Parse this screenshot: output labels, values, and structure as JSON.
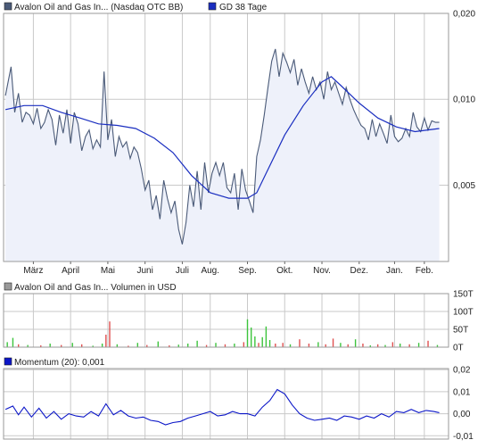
{
  "colors": {
    "price": "#4a5a78",
    "price_fill": "#eef1fa",
    "ma": "#1a2ec0",
    "momentum": "#0b16c8",
    "vol_up": "#3cc43c",
    "vol_down": "#e05050",
    "grid": "#c9c9c9",
    "frame": "#9a9a9a"
  },
  "icons": {
    "legend": "square-swatch-icon"
  },
  "chart_data": [
    {
      "type": "line",
      "legend": [
        {
          "label": "Avalon Oil and Gas In... (Nasdaq OTC BB)",
          "color": "#4a5a78"
        },
        {
          "label": "GD 38 Tage",
          "color": "#1a2ec0"
        }
      ],
      "x_tick_labels": [
        "März",
        "April",
        "Mai",
        "Juni",
        "Juli",
        "Aug.",
        "Sep.",
        "Okt.",
        "Nov.",
        "Dez.",
        "Jan.",
        "Feb."
      ],
      "x_tick_pos": [
        0.5,
        2.5,
        4.5,
        6.5,
        8.5,
        10.0,
        12.0,
        14.0,
        16.0,
        18.0,
        19.9,
        21.5
      ],
      "y_ticks": [
        0.005,
        0.01,
        0.02
      ],
      "y_tick_labels": [
        "0,005",
        "0,010",
        "0,020"
      ],
      "yscale": "log",
      "ylim": [
        0.0027,
        0.02
      ],
      "xlim": [
        -1.1,
        22.8
      ],
      "grid": true,
      "series": [
        {
          "name": "Avalon Oil and Gas In... (Nasdaq OTC BB)",
          "x": [
            -1.0,
            -0.7,
            -0.5,
            -0.3,
            -0.1,
            0.1,
            0.3,
            0.5,
            0.7,
            0.9,
            1.1,
            1.3,
            1.5,
            1.7,
            1.9,
            2.1,
            2.3,
            2.5,
            2.7,
            2.9,
            3.1,
            3.3,
            3.5,
            3.7,
            3.9,
            4.1,
            4.3,
            4.5,
            4.7,
            4.9,
            5.1,
            5.3,
            5.5,
            5.7,
            5.9,
            6.1,
            6.3,
            6.5,
            6.7,
            6.9,
            7.1,
            7.3,
            7.5,
            7.7,
            7.9,
            8.1,
            8.3,
            8.5,
            8.7,
            8.9,
            9.1,
            9.3,
            9.5,
            9.7,
            9.9,
            10.1,
            10.3,
            10.5,
            10.7,
            10.9,
            11.1,
            11.3,
            11.5,
            11.7,
            11.9,
            12.1,
            12.3,
            12.5,
            12.7,
            12.9,
            13.1,
            13.3,
            13.5,
            13.7,
            13.9,
            14.1,
            14.3,
            14.5,
            14.7,
            14.9,
            15.1,
            15.3,
            15.5,
            15.7,
            15.9,
            16.1,
            16.3,
            16.5,
            16.7,
            16.9,
            17.1,
            17.3,
            17.5,
            17.7,
            17.9,
            18.1,
            18.3,
            18.5,
            18.7,
            18.9,
            19.1,
            19.3,
            19.5,
            19.7,
            19.9,
            20.1,
            20.3,
            20.5,
            20.7,
            20.9,
            21.1,
            21.3,
            21.5,
            21.7,
            21.9,
            22.1,
            22.3
          ],
          "values": [
            0.0103,
            0.013,
            0.009,
            0.0105,
            0.0083,
            0.009,
            0.0088,
            0.0082,
            0.0093,
            0.0079,
            0.0083,
            0.0092,
            0.0085,
            0.0069,
            0.0088,
            0.0076,
            0.0092,
            0.007,
            0.009,
            0.0082,
            0.0066,
            0.0074,
            0.0078,
            0.0067,
            0.0072,
            0.0068,
            0.0125,
            0.0072,
            0.0085,
            0.0063,
            0.0074,
            0.0068,
            0.0071,
            0.0062,
            0.0068,
            0.0065,
            0.0057,
            0.0048,
            0.0052,
            0.0041,
            0.0046,
            0.0038,
            0.0052,
            0.0045,
            0.004,
            0.0044,
            0.0035,
            0.0031,
            0.0037,
            0.005,
            0.0042,
            0.0056,
            0.0041,
            0.006,
            0.0047,
            0.0055,
            0.006,
            0.0054,
            0.006,
            0.0049,
            0.0047,
            0.0055,
            0.0041,
            0.0057,
            0.0048,
            0.0044,
            0.004,
            0.0063,
            0.0072,
            0.0088,
            0.011,
            0.0136,
            0.015,
            0.012,
            0.0145,
            0.0135,
            0.0124,
            0.0138,
            0.0112,
            0.0128,
            0.0115,
            0.0105,
            0.012,
            0.0108,
            0.0115,
            0.01,
            0.0125,
            0.0108,
            0.0115,
            0.0105,
            0.0096,
            0.011,
            0.01,
            0.0092,
            0.0086,
            0.0081,
            0.0079,
            0.0072,
            0.0085,
            0.0074,
            0.0082,
            0.0076,
            0.007,
            0.0088,
            0.0074,
            0.0071,
            0.0073,
            0.0079,
            0.0074,
            0.009,
            0.008,
            0.0077,
            0.0086,
            0.0078,
            0.0084,
            0.0083,
            0.0083
          ]
        },
        {
          "name": "GD 38 Tage",
          "x": [
            -1.0,
            0.0,
            1.0,
            2.0,
            3.0,
            4.0,
            5.0,
            6.0,
            7.0,
            8.0,
            9.0,
            10.0,
            11.0,
            12.0,
            12.5,
            13.0,
            14.0,
            15.0,
            16.0,
            16.5,
            17.0,
            18.0,
            19.0,
            20.0,
            21.0,
            22.3
          ],
          "values": [
            0.0092,
            0.0095,
            0.0095,
            0.009,
            0.0086,
            0.0082,
            0.0081,
            0.0079,
            0.0073,
            0.0065,
            0.0054,
            0.0047,
            0.0045,
            0.0045,
            0.0047,
            0.0055,
            0.0075,
            0.0095,
            0.0115,
            0.012,
            0.0112,
            0.0097,
            0.0086,
            0.008,
            0.0077,
            0.0079
          ]
        }
      ]
    },
    {
      "type": "bar",
      "legend": [
        {
          "label": "Avalon Oil and Gas In... Volumen in USD",
          "color": "#9a9a9a"
        }
      ],
      "y_ticks": [
        0,
        50,
        100,
        150
      ],
      "y_tick_labels": [
        "0T",
        "50T",
        "100T",
        "150T"
      ],
      "ylim": [
        0,
        150
      ],
      "grid": true,
      "x": [
        -0.9,
        -0.6,
        -0.3,
        0.2,
        0.9,
        1.4,
        2.0,
        2.6,
        3.1,
        3.7,
        4.2,
        4.4,
        4.6,
        5.0,
        5.6,
        6.1,
        6.6,
        7.2,
        7.8,
        8.3,
        8.8,
        9.3,
        9.8,
        10.3,
        10.8,
        11.3,
        11.8,
        12.0,
        12.2,
        12.4,
        12.6,
        12.8,
        13.0,
        13.2,
        13.5,
        13.9,
        14.3,
        14.8,
        15.3,
        15.8,
        16.2,
        16.6,
        17.0,
        17.4,
        17.8,
        18.2,
        18.6,
        19.0,
        19.4,
        19.8,
        20.2,
        20.7,
        21.2,
        21.7,
        22.2
      ],
      "values": [
        14,
        26,
        8,
        6,
        5,
        10,
        6,
        12,
        8,
        4,
        10,
        35,
        72,
        8,
        4,
        12,
        6,
        16,
        5,
        7,
        10,
        18,
        6,
        12,
        8,
        10,
        14,
        78,
        55,
        30,
        12,
        28,
        58,
        20,
        10,
        12,
        8,
        22,
        10,
        14,
        8,
        24,
        12,
        8,
        22,
        10,
        5,
        8,
        6,
        14,
        10,
        8,
        12,
        18,
        6
      ],
      "colors": [
        "#3cc43c",
        "#3cc43c",
        "#e05050",
        "#3cc43c",
        "#e05050",
        "#3cc43c",
        "#e05050",
        "#3cc43c",
        "#e05050",
        "#3cc43c",
        "#3cc43c",
        "#e05050",
        "#e05050",
        "#3cc43c",
        "#e05050",
        "#3cc43c",
        "#e05050",
        "#3cc43c",
        "#e05050",
        "#3cc43c",
        "#3cc43c",
        "#3cc43c",
        "#e05050",
        "#3cc43c",
        "#e05050",
        "#3cc43c",
        "#e05050",
        "#3cc43c",
        "#3cc43c",
        "#3cc43c",
        "#e05050",
        "#3cc43c",
        "#3cc43c",
        "#3cc43c",
        "#e05050",
        "#e05050",
        "#3cc43c",
        "#e05050",
        "#e05050",
        "#3cc43c",
        "#e05050",
        "#e05050",
        "#3cc43c",
        "#e05050",
        "#3cc43c",
        "#e05050",
        "#3cc43c",
        "#e05050",
        "#3cc43c",
        "#e05050",
        "#3cc43c",
        "#e05050",
        "#3cc43c",
        "#e05050",
        "#3cc43c"
      ]
    },
    {
      "type": "line",
      "legend": [
        {
          "label": "Momentum (20): 0,001",
          "color": "#0b16c8"
        }
      ],
      "y_ticks": [
        -0.01,
        0.0,
        0.01,
        0.02
      ],
      "y_tick_labels": [
        "-0,01",
        "0,00",
        "0,01",
        "0,02"
      ],
      "ylim": [
        -0.0115,
        0.0205
      ],
      "grid": true,
      "series": [
        {
          "name": "Momentum (20): 0,001",
          "x": [
            -1.0,
            -0.6,
            -0.3,
            0.0,
            0.4,
            0.8,
            1.2,
            1.6,
            2.0,
            2.4,
            2.8,
            3.2,
            3.6,
            4.0,
            4.4,
            4.8,
            5.2,
            5.6,
            6.0,
            6.4,
            6.8,
            7.2,
            7.6,
            8.0,
            8.4,
            8.8,
            9.2,
            9.6,
            10.0,
            10.4,
            10.8,
            11.2,
            11.6,
            12.0,
            12.4,
            12.8,
            13.2,
            13.6,
            14.0,
            14.4,
            14.8,
            15.2,
            15.6,
            16.0,
            16.4,
            16.8,
            17.2,
            17.6,
            18.0,
            18.4,
            18.8,
            19.2,
            19.6,
            20.0,
            20.4,
            20.8,
            21.2,
            21.6,
            22.0,
            22.3
          ],
          "values": [
            0.002,
            0.0035,
            -0.0005,
            0.003,
            -0.0015,
            0.0025,
            -0.002,
            0.001,
            -0.0025,
            0.0,
            -0.001,
            -0.0015,
            0.001,
            -0.001,
            0.0045,
            -0.0005,
            0.0015,
            -0.001,
            -0.002,
            -0.0015,
            -0.003,
            -0.0035,
            -0.005,
            -0.004,
            -0.0035,
            -0.002,
            -0.001,
            0.0,
            0.001,
            -0.001,
            -0.0005,
            0.001,
            0.0,
            0.0,
            -0.001,
            0.003,
            0.006,
            0.011,
            0.009,
            0.004,
            0.0,
            -0.002,
            -0.003,
            -0.0025,
            -0.002,
            -0.003,
            -0.001,
            -0.0015,
            -0.0025,
            -0.001,
            -0.002,
            0.0,
            -0.0015,
            0.001,
            0.0005,
            0.002,
            0.0005,
            0.0015,
            0.001,
            0.0005
          ]
        }
      ]
    }
  ]
}
